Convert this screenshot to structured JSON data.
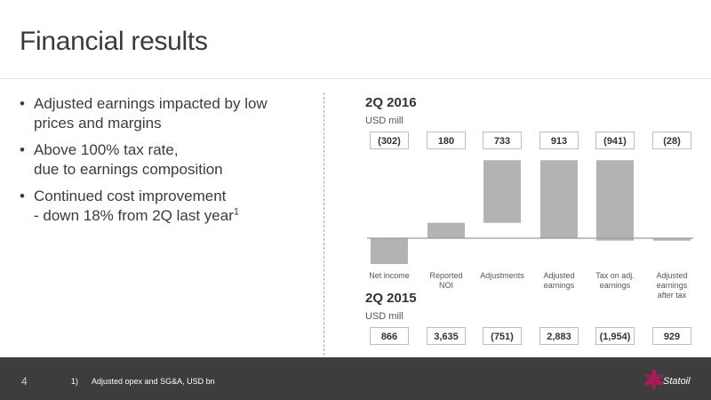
{
  "slide": {
    "title": "Financial results",
    "bullets": [
      {
        "text": "Adjusted earnings impacted by low prices and margins",
        "lines": [
          "Adjusted earnings impacted by low",
          "prices and margins"
        ]
      },
      {
        "text": "Above 100% tax rate, due to earnings composition",
        "lines": [
          "Above 100% tax rate,",
          "due to earnings composition"
        ]
      },
      {
        "text": "Continued cost improvement - down 18% from 2Q last year",
        "lines": [
          "Continued cost improvement",
          "- down 18% from 2Q last year"
        ],
        "footnote_ref": "1"
      }
    ],
    "page_number": "4",
    "footnote": "1)      Adjusted opex and SG&A, USD bn",
    "logo_text": "Statoil",
    "logo_color": "#b5175d"
  },
  "chart_data": {
    "type": "bar",
    "subtype": "waterfall",
    "title": "2Q 2016",
    "unit": "USD mill",
    "categories": [
      "Net income",
      "Reported NOI",
      "Adjustments",
      "Adjusted earnings",
      "Tax on adj. earnings",
      "Adjusted earnings after tax"
    ],
    "category_lines": [
      [
        "Net income"
      ],
      [
        "Reported",
        "NOI"
      ],
      [
        "Adjustments"
      ],
      [
        "Adjusted",
        "earnings"
      ],
      [
        "Tax on adj.",
        "earnings"
      ],
      [
        "Adjusted",
        "earnings",
        "after tax"
      ]
    ],
    "values": [
      -302,
      180,
      733,
      913,
      -941,
      -28
    ],
    "value_labels": [
      "(302)",
      "180",
      "733",
      "913",
      "(941)",
      "(28)"
    ],
    "waterfall": [
      {
        "from": 0,
        "to": -302
      },
      {
        "from": 0,
        "to": 180
      },
      {
        "from": 180,
        "to": 913
      },
      {
        "from": 0,
        "to": 913
      },
      {
        "from": 913,
        "to": -28
      },
      {
        "from": 0,
        "to": -28
      }
    ],
    "bar_color": "#b3b3b3",
    "baseline_color": "#9a9a9a",
    "ylim": [
      -320,
      930
    ],
    "grid": false,
    "comparison": {
      "title": "2Q 2015",
      "unit": "USD mill",
      "values": [
        866,
        3635,
        -751,
        2883,
        -1954,
        929
      ],
      "value_labels": [
        "866",
        "3,635",
        "(751)",
        "2,883",
        "(1,954)",
        "929"
      ]
    }
  }
}
